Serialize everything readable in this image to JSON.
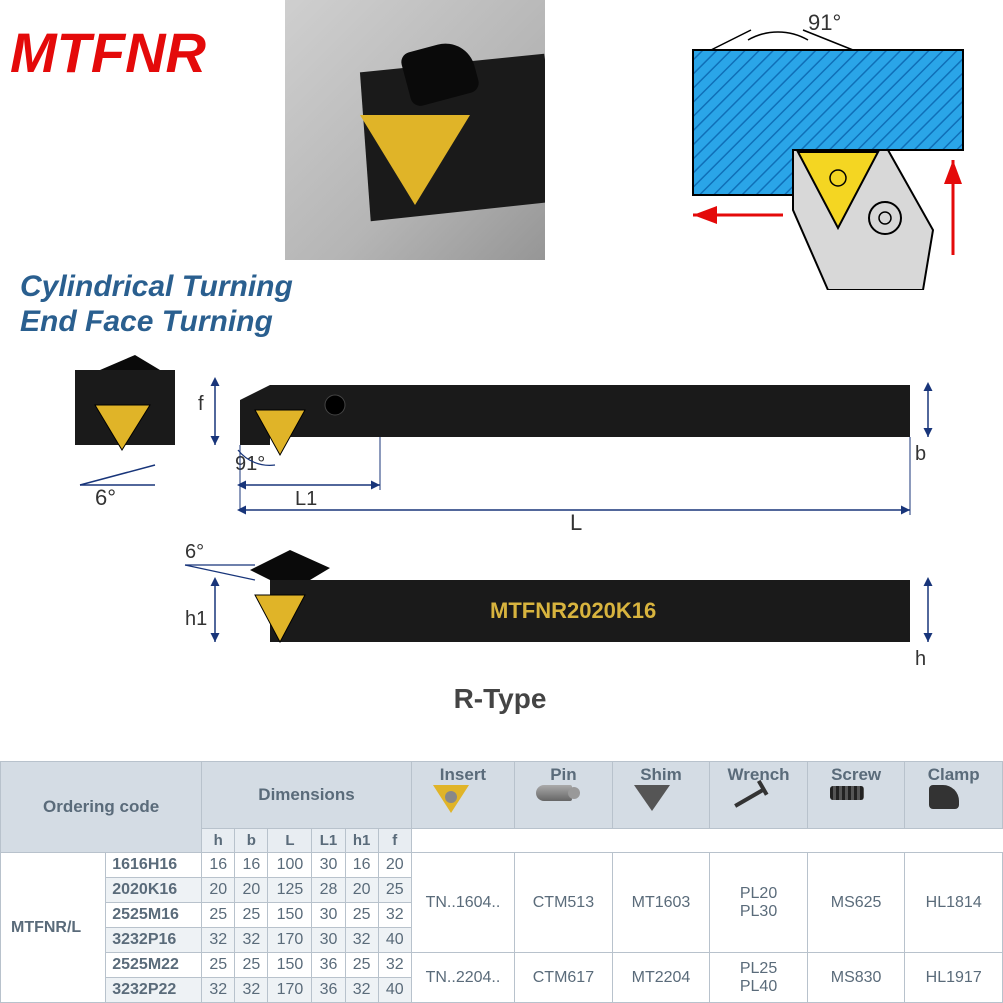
{
  "title": "MTFNR",
  "subtitle_line1": "Cylindrical Turning",
  "subtitle_line2": "End Face Turning",
  "schematic": {
    "angle_label": "91°",
    "workpiece_color": "#2aa5e8",
    "hatch_color": "#0f6fb8",
    "tool_body_color": "#d8d8d8",
    "insert_color": "#f4d622",
    "arrow_color": "#e40a0a",
    "outline_color": "#000000"
  },
  "dim_drawing": {
    "angle_top": "91°",
    "angle_side": "6°",
    "angle_bottom": "6°",
    "labels": {
      "f": "f",
      "L1": "L1",
      "L": "L",
      "b": "b",
      "h1": "h1",
      "h": "h"
    },
    "model_text": "MTFNR2020K16",
    "type_label": "R-Type",
    "bar_color": "#1a1a1a",
    "insert_color": "#e0b428",
    "dim_line_color": "#18357a"
  },
  "table": {
    "background_colors": {
      "header": "#d4dce4",
      "subheader": "#e8edf2",
      "odd_row": "#ffffff",
      "even_row": "#eef2f5",
      "border": "#b8c2cc"
    },
    "fontsize_header": 17,
    "fontsize_body": 16,
    "header_groups": [
      "Ordering code",
      "Dimensions",
      "Insert",
      "Pin",
      "Shim",
      "Wrench",
      "Screw",
      "Clamp"
    ],
    "dimension_subcols": [
      "h",
      "b",
      "L",
      "L1",
      "h1",
      "f"
    ],
    "model_prefix": "MTFNR/L",
    "rows": [
      {
        "code": "1616H16",
        "dims": [
          16,
          16,
          100,
          30,
          16,
          20
        ]
      },
      {
        "code": "2020K16",
        "dims": [
          20,
          20,
          125,
          28,
          20,
          25
        ]
      },
      {
        "code": "2525M16",
        "dims": [
          25,
          25,
          150,
          30,
          25,
          32
        ]
      },
      {
        "code": "3232P16",
        "dims": [
          32,
          32,
          170,
          30,
          32,
          40
        ]
      },
      {
        "code": "2525M22",
        "dims": [
          25,
          25,
          150,
          36,
          25,
          32
        ]
      },
      {
        "code": "3232P22",
        "dims": [
          32,
          32,
          170,
          36,
          32,
          40
        ]
      }
    ],
    "group1": {
      "rowspan": 4,
      "insert": "TN..1604..",
      "pin": "CTM513",
      "shim": "MT1603",
      "wrench_a": "PL20",
      "wrench_b": "PL30",
      "screw": "MS625",
      "clamp": "HL1814"
    },
    "group2": {
      "rowspan": 2,
      "insert": "TN..2204..",
      "pin": "CTM617",
      "shim": "MT2204",
      "wrench_a": "PL25",
      "wrench_b": "PL40",
      "screw": "MS830",
      "clamp": "HL1917"
    }
  }
}
